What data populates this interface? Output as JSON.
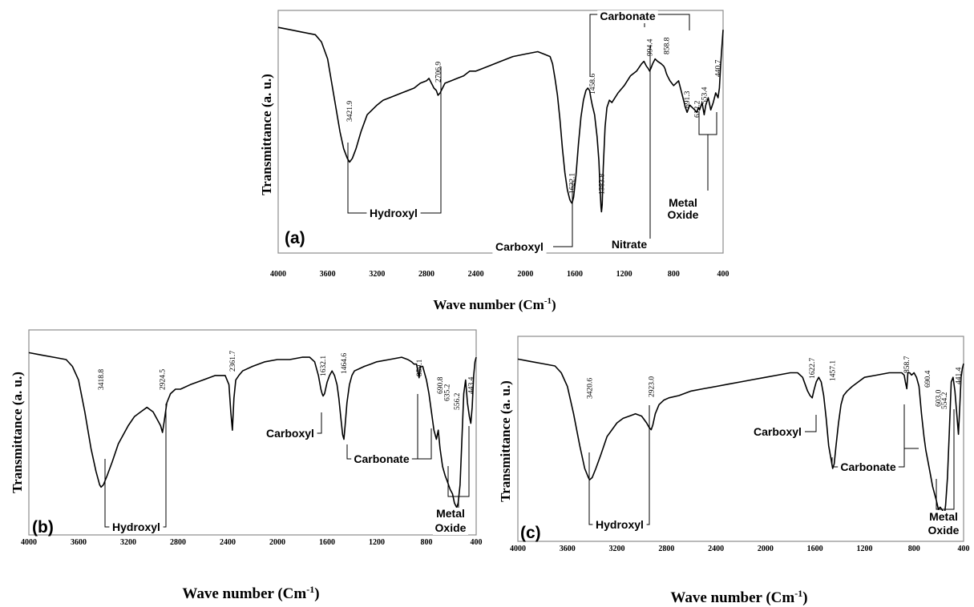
{
  "chart_data": [
    {
      "type": "line",
      "panel_label": "(a)",
      "xlabel": "Wave number (Cm",
      "xlabel_sup": "-1",
      "xlabel_end": ")",
      "ylabel": "Transmittance (a. u.)",
      "xlim": [
        4000,
        400
      ],
      "xticks": [
        "4000",
        "3600",
        "3200",
        "2800",
        "2400",
        "2000",
        "1600",
        "1200",
        "800",
        "400"
      ],
      "series": [
        {
          "x": [
            4000,
            3900,
            3800,
            3700,
            3650,
            3600,
            3550,
            3500,
            3470,
            3440,
            3421.9,
            3400,
            3370,
            3330,
            3280,
            3200,
            3150,
            3100,
            3000,
            2950,
            2900,
            2850,
            2800,
            2780,
            2760,
            2740,
            2720,
            2706.9,
            2690,
            2670,
            2650,
            2600,
            2550,
            2500,
            2450,
            2400,
            2300,
            2200,
            2100,
            2000,
            1900,
            1850,
            1800,
            1780,
            1760,
            1740,
            1720,
            1700,
            1680,
            1660,
            1640,
            1630,
            1622.1,
            1610,
            1590,
            1570,
            1550,
            1530,
            1510,
            1495,
            1480,
            1470,
            1458.6,
            1440,
            1420,
            1405,
            1395,
            1388,
            1383.8,
            1378,
            1370,
            1355,
            1340,
            1320,
            1300,
            1250,
            1200,
            1150,
            1100,
            1060,
            1040,
            1020,
            1005,
            994.4,
            985,
            970,
            950,
            930,
            900,
            880,
            870,
            858.8,
            850,
            830,
            800,
            780,
            760,
            740,
            720,
            705,
            691.3,
            670,
            650,
            630,
            612.2,
            600,
            590,
            570,
            553.4,
            540,
            520,
            500,
            480,
            460,
            450,
            440.7,
            430,
            420,
            410,
            400
          ],
          "y": [
            93,
            92,
            91,
            90,
            87,
            80,
            65,
            50,
            43,
            39,
            37.5,
            39,
            43,
            50,
            57,
            61,
            63,
            64,
            66,
            67,
            68,
            70,
            71,
            72,
            70,
            68,
            67,
            65,
            66,
            68,
            70,
            71,
            72,
            73,
            75,
            75,
            77,
            79,
            81,
            82,
            83,
            82,
            81,
            78,
            72,
            65,
            55,
            43,
            33,
            26,
            22,
            21,
            20.5,
            23,
            32,
            45,
            56,
            63,
            67,
            68,
            67,
            64,
            61,
            57,
            48,
            38,
            26,
            19,
            17,
            20,
            35,
            52,
            60,
            63,
            62,
            66,
            69,
            73,
            75,
            78,
            79,
            77,
            76,
            75,
            76,
            78,
            80,
            79,
            78,
            77,
            76,
            74,
            73,
            71,
            69,
            70,
            71,
            67,
            63,
            60,
            58,
            61,
            60,
            59,
            58,
            60,
            59,
            62,
            57,
            61,
            64,
            59,
            62,
            66,
            65,
            64,
            68,
            77,
            85,
            92
          ]
        }
      ],
      "annotations": [
        {
          "text": "3421.9"
        },
        {
          "text": "2706.9"
        },
        {
          "text": "1622.1"
        },
        {
          "text": "1458.6"
        },
        {
          "text": "1383.8"
        },
        {
          "text": "994.4"
        },
        {
          "text": "858.8"
        },
        {
          "text": "691.3"
        },
        {
          "text": "612.2"
        },
        {
          "text": "553.4"
        },
        {
          "text": "440.7"
        }
      ],
      "groups": [
        "Hydroxyl",
        "Carboxyl",
        "Nitrate",
        "Carbonate",
        "Metal",
        "Oxide"
      ]
    },
    {
      "type": "line",
      "panel_label": "(b)",
      "xlabel": "Wave number (Cm",
      "xlabel_sup": "-1",
      "xlabel_end": ")",
      "ylabel": "Transmittance (a. u.)",
      "xlim": [
        4000,
        400
      ],
      "xticks": [
        "4000",
        "3600",
        "3200",
        "2800",
        "2400",
        "2000",
        "1600",
        "1200",
        "800",
        "400"
      ],
      "series": [
        {
          "x": [
            4000,
            3900,
            3800,
            3700,
            3650,
            3600,
            3550,
            3500,
            3460,
            3430,
            3418.8,
            3400,
            3370,
            3330,
            3280,
            3200,
            3150,
            3100,
            3050,
            3000,
            2960,
            2940,
            2924.5,
            2910,
            2890,
            2860,
            2820,
            2780,
            2700,
            2600,
            2500,
            2450,
            2420,
            2390,
            2375,
            2361.7,
            2350,
            2335,
            2310,
            2280,
            2200,
            2100,
            2000,
            1900,
            1800,
            1740,
            1700,
            1670,
            1650,
            1640,
            1632.1,
            1620,
            1600,
            1580,
            1560,
            1540,
            1520,
            1505,
            1490,
            1475,
            1464.6,
            1455,
            1440,
            1420,
            1400,
            1380,
            1340,
            1300,
            1250,
            1200,
            1100,
            1000,
            950,
            920,
            900,
            880,
            870,
            859.1,
            850,
            830,
            800,
            780,
            760,
            740,
            720,
            705,
            690.8,
            670,
            650,
            635.2,
            610,
            590,
            575,
            556.2,
            545,
            530,
            515,
            500,
            485,
            470,
            455,
            443.4,
            432,
            420,
            410,
            400
          ],
          "y": [
            95,
            94.5,
            94,
            93.5,
            92,
            89,
            82,
            74,
            69,
            66,
            65.5,
            66,
            68,
            71,
            75,
            79,
            81,
            82,
            83,
            82,
            80,
            79,
            77.5,
            80,
            84,
            86,
            87,
            87,
            88,
            89,
            90,
            90,
            90,
            88,
            82,
            78,
            85,
            89,
            90,
            91,
            92,
            93,
            93.5,
            93.5,
            94,
            94,
            93,
            90,
            87,
            86,
            85.5,
            86,
            88.5,
            90,
            91,
            90,
            88,
            85,
            81,
            77,
            76,
            79,
            84,
            88,
            90,
            91,
            91.5,
            92,
            92.5,
            93,
            93.5,
            94,
            93.5,
            93,
            92.5,
            92.5,
            91,
            89.5,
            92,
            92,
            89,
            86,
            82,
            78,
            76,
            78,
            74,
            70,
            68,
            67,
            65,
            64,
            62,
            61,
            62,
            66,
            76,
            86,
            89,
            84,
            81,
            79.5,
            83,
            90,
            93,
            94
          ]
        }
      ],
      "annotations": [
        {
          "text": "3418.8"
        },
        {
          "text": "2924.5"
        },
        {
          "text": "2361.7"
        },
        {
          "text": "1632.1"
        },
        {
          "text": "1464.6"
        },
        {
          "text": "859.1"
        },
        {
          "text": "690.8"
        },
        {
          "text": "635.2"
        },
        {
          "text": "556.2"
        },
        {
          "text": "443.4"
        }
      ],
      "groups": [
        "Hydroxyl",
        "Carboxyl",
        "Carbonate",
        "Metal",
        "Oxide"
      ]
    },
    {
      "type": "line",
      "panel_label": "(c)",
      "xlabel": "Wave number (Cm",
      "xlabel_sup": "-1",
      "xlabel_end": ")",
      "ylabel": "Transmittance (a. u.)",
      "xlim": [
        4000,
        400
      ],
      "xticks": [
        "4000",
        "3600",
        "3200",
        "2800",
        "2400",
        "2000",
        "1600",
        "1200",
        "800",
        "400"
      ],
      "series": [
        {
          "x": [
            4000,
            3900,
            3800,
            3700,
            3650,
            3600,
            3550,
            3500,
            3460,
            3430,
            3420.6,
            3400,
            3370,
            3330,
            3280,
            3200,
            3150,
            3100,
            3050,
            3000,
            2960,
            2940,
            2923.0,
            2910,
            2890,
            2860,
            2820,
            2780,
            2700,
            2600,
            2500,
            2400,
            2300,
            2200,
            2100,
            2000,
            1900,
            1800,
            1740,
            1700,
            1660,
            1640,
            1622.7,
            1610,
            1590,
            1570,
            1550,
            1530,
            1510,
            1490,
            1470,
            1457.1,
            1445,
            1430,
            1410,
            1390,
            1370,
            1340,
            1300,
            1250,
            1200,
            1100,
            1000,
            950,
            900,
            880,
            870,
            858.7,
            850,
            835,
            820,
            800,
            780,
            760,
            740,
            720,
            705,
            690.4,
            670,
            650,
            620,
            603.0,
            590,
            575,
            554.2,
            545,
            530,
            515,
            500,
            485,
            470,
            455,
            441.4,
            432,
            420,
            410,
            400
          ],
          "y": [
            95,
            94.5,
            94,
            93.5,
            92,
            89,
            83,
            76,
            71,
            69,
            68.5,
            69,
            71,
            74,
            78,
            81,
            82,
            82.5,
            83,
            82.5,
            81,
            80,
            79.5,
            80.5,
            83,
            85,
            86,
            86.5,
            87,
            88,
            88.5,
            89,
            89.5,
            90,
            90.5,
            91,
            91.5,
            92,
            92,
            91,
            88,
            87,
            86.5,
            88,
            90,
            91,
            90,
            87,
            82,
            76,
            73,
            71,
            72,
            76,
            81,
            85,
            87,
            88,
            89,
            90,
            91,
            91.5,
            92,
            92,
            92,
            91.5,
            90,
            88.5,
            92,
            92,
            91.5,
            92,
            91,
            89,
            83,
            78,
            75,
            73,
            70,
            67,
            64,
            62,
            62.5,
            62,
            61,
            63,
            69,
            79,
            90,
            91,
            88,
            83,
            78.5,
            84,
            91,
            93,
            94
          ]
        }
      ],
      "annotations": [
        {
          "text": "3420.6"
        },
        {
          "text": "2923.0"
        },
        {
          "text": "1622.7"
        },
        {
          "text": "1457.1"
        },
        {
          "text": "858.7"
        },
        {
          "text": "690.4"
        },
        {
          "text": "603.0"
        },
        {
          "text": "554.2"
        },
        {
          "text": "441.4"
        }
      ],
      "groups": [
        "Hydroxyl",
        "Carboxyl",
        "Carbonate",
        "Metal",
        "Oxide"
      ]
    }
  ]
}
